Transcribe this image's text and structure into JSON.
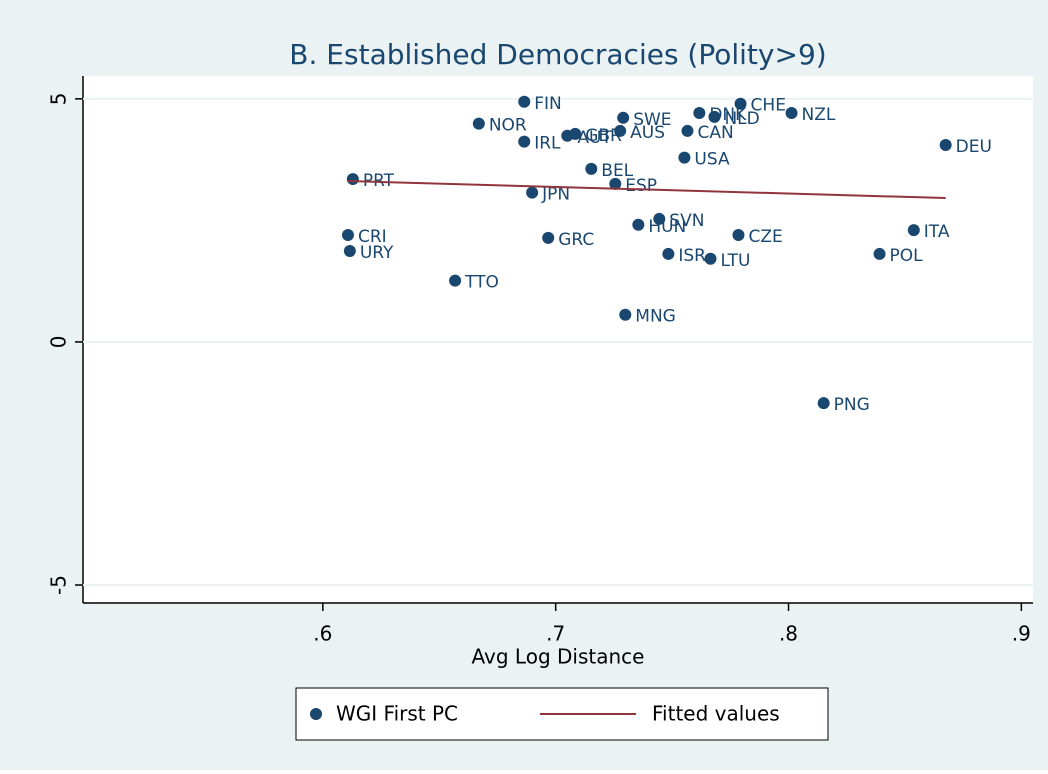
{
  "chart_data": {
    "type": "scatter",
    "title": "B. Established Democracies (Polity>9)",
    "x_label": "Avg Log Distance",
    "xlim": [
      0.497,
      0.905
    ],
    "ylim": [
      -5.37,
      5.47
    ],
    "xticks": [
      {
        "value": 0.6,
        "label": ".6"
      },
      {
        "value": 0.7,
        "label": ".7"
      },
      {
        "value": 0.8,
        "label": ".8"
      },
      {
        "value": 0.9,
        "label": ".9"
      }
    ],
    "yticks": [
      -5,
      0,
      5
    ],
    "grid": true,
    "series": [
      {
        "name": "WGI First PC",
        "color": "#1a476f",
        "labels": [
          "FIN",
          "NOR",
          "IRL",
          "AUT",
          "GBR",
          "SWE",
          "AUS",
          "DNK",
          "NLD",
          "CHE",
          "NZL",
          "CAN",
          "USA",
          "DEU",
          "BEL",
          "ESP",
          "JPN",
          "PRT",
          "SVN",
          "HUN",
          "GRC",
          "CZE",
          "ITA",
          "CRI",
          "URY",
          "ISR",
          "LTU",
          "POL",
          "TTO",
          "MNG",
          "PNG"
        ],
        "x": [
          0.6865,
          0.667,
          0.6865,
          0.705,
          0.7084,
          0.729,
          0.7277,
          0.7617,
          0.7682,
          0.7794,
          0.8013,
          0.7566,
          0.7553,
          0.8675,
          0.7153,
          0.7256,
          0.6899,
          0.6129,
          0.7445,
          0.7355,
          0.6968,
          0.7785,
          0.8538,
          0.6108,
          0.6116,
          0.7484,
          0.7665,
          0.8391,
          0.6568,
          0.7299,
          0.8151
        ],
        "values": [
          4.94,
          4.49,
          4.12,
          4.24,
          4.28,
          4.61,
          4.34,
          4.71,
          4.63,
          4.9,
          4.71,
          4.34,
          3.79,
          4.05,
          3.56,
          3.25,
          3.07,
          3.35,
          2.53,
          2.41,
          2.14,
          2.2,
          2.3,
          2.2,
          1.87,
          1.81,
          1.71,
          1.81,
          1.26,
          0.56,
          -1.26
        ]
      },
      {
        "name": "Fitted values",
        "color": "#90353b",
        "type": "line",
        "x": [
          0.6108,
          0.8675
        ],
        "values": [
          3.31,
          2.96
        ]
      }
    ]
  }
}
